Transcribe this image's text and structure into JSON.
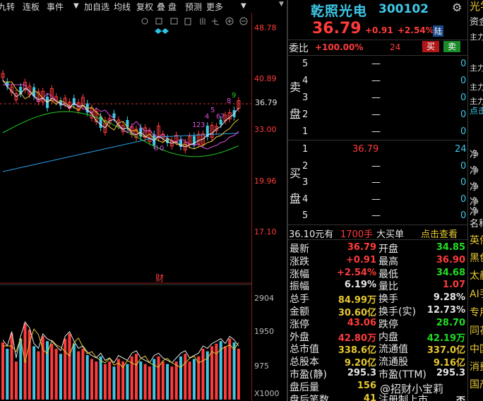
{
  "toolbar": {
    "items": [
      "九转",
      "连板",
      "事件",
      "▼",
      "加自选",
      "均线",
      "复权",
      "叠",
      "盘",
      "预测",
      "更多"
    ],
    "dropdown": "▼"
  },
  "chart": {
    "price_ticks": [
      "48.78",
      "40.89",
      "36.79",
      "33.00",
      "19.96",
      "17.10"
    ],
    "vol_ticks": [
      "2904",
      "1950",
      "975",
      "X1000"
    ],
    "marker": "财",
    "seq_top": [
      "9",
      "8",
      "5",
      "4",
      "6",
      "7",
      "1",
      "2",
      "3"
    ],
    "seq_low": [
      "0",
      "0"
    ],
    "colors": {
      "up": "#ff3b3b",
      "down": "#3ec8e6",
      "ma5": "#e6e6e6",
      "ma10": "#e6c832",
      "ma20": "#d94fd9",
      "ma60": "#22cc22",
      "ma120": "#2aa0e6",
      "bg": "#000000"
    }
  },
  "quote": {
    "name": "乾照光电",
    "code": "300102",
    "price": "36.79",
    "change": "+0.91",
    "pct": "+2.54%",
    "tag": "陆",
    "webi_label": "委比",
    "webi_value": "+100.00%",
    "webi_diff": "24",
    "buy_btn": "买",
    "sell_btn": "卖",
    "sell_label": [
      "卖",
      "盘"
    ],
    "buy_label": [
      "买",
      "盘"
    ],
    "asks": [
      {
        "lv": "5",
        "price": "—",
        "vol": "0"
      },
      {
        "lv": "4",
        "price": "—",
        "vol": "0"
      },
      {
        "lv": "3",
        "price": "—",
        "vol": "0"
      },
      {
        "lv": "2",
        "price": "—",
        "vol": "0"
      },
      {
        "lv": "1",
        "price": "—",
        "vol": "0"
      }
    ],
    "bids": [
      {
        "lv": "1",
        "price": "36.79",
        "vol": "24"
      },
      {
        "lv": "2",
        "price": "—",
        "vol": "0"
      },
      {
        "lv": "3",
        "price": "—",
        "vol": "0"
      },
      {
        "lv": "4",
        "price": "—",
        "vol": "0"
      },
      {
        "lv": "5",
        "price": "—",
        "vol": "0"
      }
    ],
    "queue_price": "36.10元有",
    "queue_vol": "1700手",
    "queue_label": "大买单",
    "queue_link": "点击查看"
  },
  "stats": [
    {
      "l1": "最新",
      "v1": "36.79",
      "c1": "red",
      "l2": "开盘",
      "v2": "34.85",
      "c2": "grn"
    },
    {
      "l1": "涨跌",
      "v1": "+0.91",
      "c1": "red",
      "l2": "最高",
      "v2": "36.90",
      "c2": "red"
    },
    {
      "l1": "涨幅",
      "v1": "+2.54%",
      "c1": "red",
      "l2": "最低",
      "v2": "34.68",
      "c2": "grn"
    },
    {
      "l1": "振幅",
      "v1": "6.19%",
      "c1": "wht",
      "l2": "量比",
      "v2": "1.07",
      "c2": "red"
    },
    {
      "l1": "总手",
      "v1": "84.99万",
      "c1": "yel",
      "l2": "换手",
      "v2": "9.28%",
      "c2": "wht"
    },
    {
      "l1": "金额",
      "v1": "30.60亿",
      "c1": "yel",
      "l2": "换手(实)",
      "v2": "12.73%",
      "c2": "wht"
    },
    {
      "l1": "涨停",
      "v1": "43.06",
      "c1": "red",
      "l2": "跌停",
      "v2": "28.70",
      "c2": "grn"
    },
    {
      "l1": "外盘",
      "v1": "42.80万",
      "c1": "red",
      "l2": "内盘",
      "v2": "42.19万",
      "c2": "grn"
    },
    {
      "l1": "总市值",
      "v1": "338.6亿",
      "c1": "yel",
      "l2": "流通值",
      "v2": "337.0亿",
      "c2": "yel"
    },
    {
      "l1": "总股本",
      "v1": "9.20亿",
      "c1": "yel",
      "l2": "流通股",
      "v2": "9.16亿",
      "c2": "yel"
    },
    {
      "l1": "市盈(静)",
      "v1": "295.3",
      "c1": "wht",
      "l2": "市盈(TTM)",
      "v2": "295.3",
      "c2": "wht"
    },
    {
      "l1": "盘后量",
      "v1": "156",
      "c1": "yel",
      "l2": "",
      "v2": "",
      "c2": "wht"
    },
    {
      "l1": "盘后笔数",
      "v1": "41",
      "c1": "yel",
      "l2": "注册制上市",
      "v2": "否",
      "c2": "wht"
    }
  ],
  "watermark": "@招财小宝莉",
  "right": {
    "top": [
      "光学",
      "资金"
    ],
    "main": [
      "主力",
      "主力",
      "主力",
      "主力",
      "点击"
    ],
    "flow": [
      "净",
      "净",
      "净",
      "净",
      "净"
    ],
    "names": [
      "名称",
      "英伟",
      "黑色",
      "太赫",
      "AI手",
      "专用",
      "同花",
      "中国",
      "消费",
      "国产"
    ]
  }
}
